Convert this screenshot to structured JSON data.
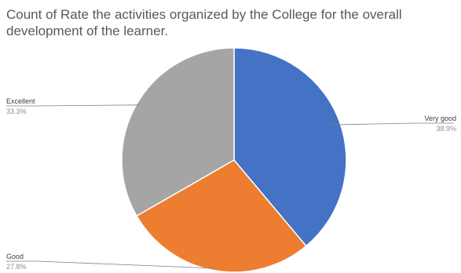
{
  "chart_data": {
    "type": "pie",
    "title": "Count of Rate the activities organized by the College for the overall development of  the learner.",
    "slices": [
      {
        "label": "Very good",
        "value": 38.9,
        "value_label": "38.9%",
        "color": "#4472C4"
      },
      {
        "label": "Good",
        "value": 27.8,
        "value_label": "27.8%",
        "color": "#ED7D31"
      },
      {
        "label": "Excellent",
        "value": 33.3,
        "value_label": "33.3%",
        "color": "#A5A5A5"
      }
    ],
    "start_angle": "12 o'clock",
    "direction": "clockwise",
    "legend": "none",
    "data_labels": "outside with leader lines"
  }
}
